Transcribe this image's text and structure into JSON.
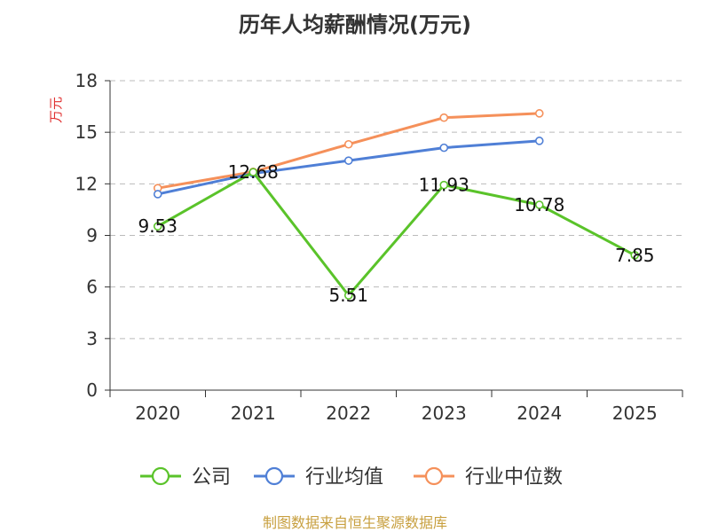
{
  "chart_data": {
    "type": "line",
    "title": "历年人均薪酬情况(万元)",
    "ylabel": "万元",
    "xlabel": "",
    "categories": [
      "2020",
      "2021",
      "2022",
      "2023",
      "2024",
      "2025"
    ],
    "ylim": [
      0,
      18
    ],
    "yticks": [
      0,
      3,
      6,
      9,
      12,
      15,
      18
    ],
    "grid": "horizontal dashed",
    "legend_position": "bottom",
    "series": [
      {
        "name": "公司",
        "color": "#5ac32a",
        "values": [
          9.53,
          12.68,
          5.51,
          11.93,
          10.78,
          7.85
        ],
        "labels": [
          "9.53",
          "12.68",
          "5.51",
          "11.93",
          "10.78",
          "7.85"
        ]
      },
      {
        "name": "行业均值",
        "color": "#4f7fd6",
        "values": [
          11.4,
          12.6,
          13.35,
          14.1,
          14.5,
          null
        ]
      },
      {
        "name": "行业中位数",
        "color": "#f5905a",
        "values": [
          11.75,
          12.7,
          14.3,
          15.85,
          16.1,
          null
        ]
      }
    ]
  },
  "source": "制图数据来自恒生聚源数据库"
}
